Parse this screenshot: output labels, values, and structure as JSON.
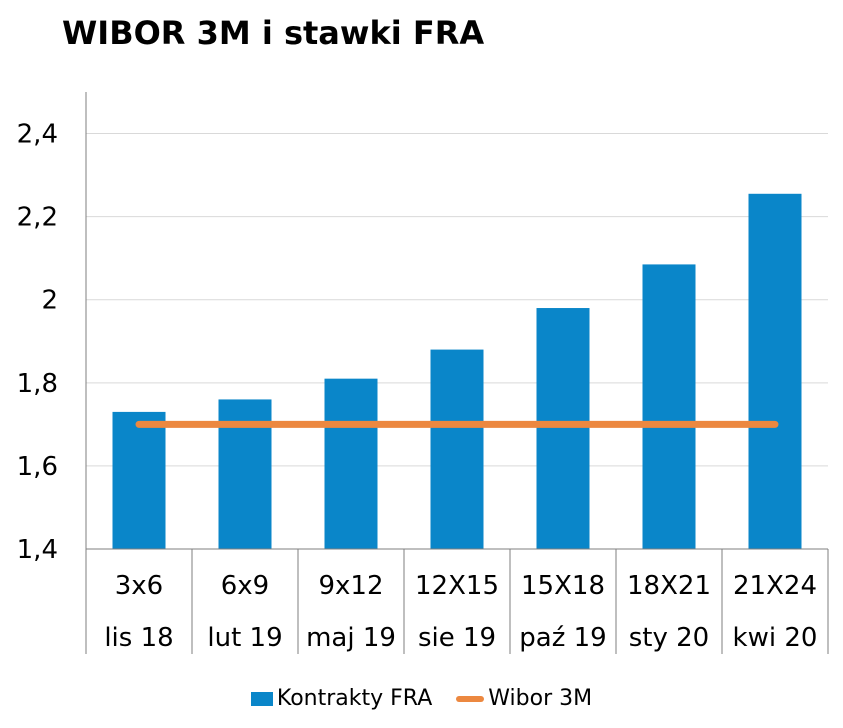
{
  "chart_data": {
    "type": "bar",
    "title": "WIBOR 3M i stawki FRA",
    "categories": [
      "3x6",
      "6x9",
      "9x12",
      "12X15",
      "15X18",
      "18X21",
      "21X24"
    ],
    "category_sublabels": [
      "lis 18",
      "lut 19",
      "maj 19",
      "sie 19",
      "paź 19",
      "sty 20",
      "kwi 20"
    ],
    "series": [
      {
        "name": "Kontrakty FRA",
        "type": "bar",
        "color": "#0a86c9",
        "values": [
          1.73,
          1.76,
          1.81,
          1.88,
          1.98,
          2.085,
          2.255
        ]
      },
      {
        "name": "Wibor 3M",
        "type": "line",
        "color": "#ec8840",
        "values": [
          1.7,
          1.7,
          1.7,
          1.7,
          1.7,
          1.7,
          1.7
        ]
      }
    ],
    "ylim": [
      1.4,
      2.5
    ],
    "yticks": [
      1.4,
      1.6,
      1.8,
      2.0,
      2.2,
      2.4
    ],
    "ytick_labels": [
      "1,4",
      "1,6",
      "1,8",
      "2",
      "2,2",
      "2,4"
    ],
    "xlabel": "",
    "ylabel": "",
    "grid": true,
    "legend_position": "bottom"
  }
}
